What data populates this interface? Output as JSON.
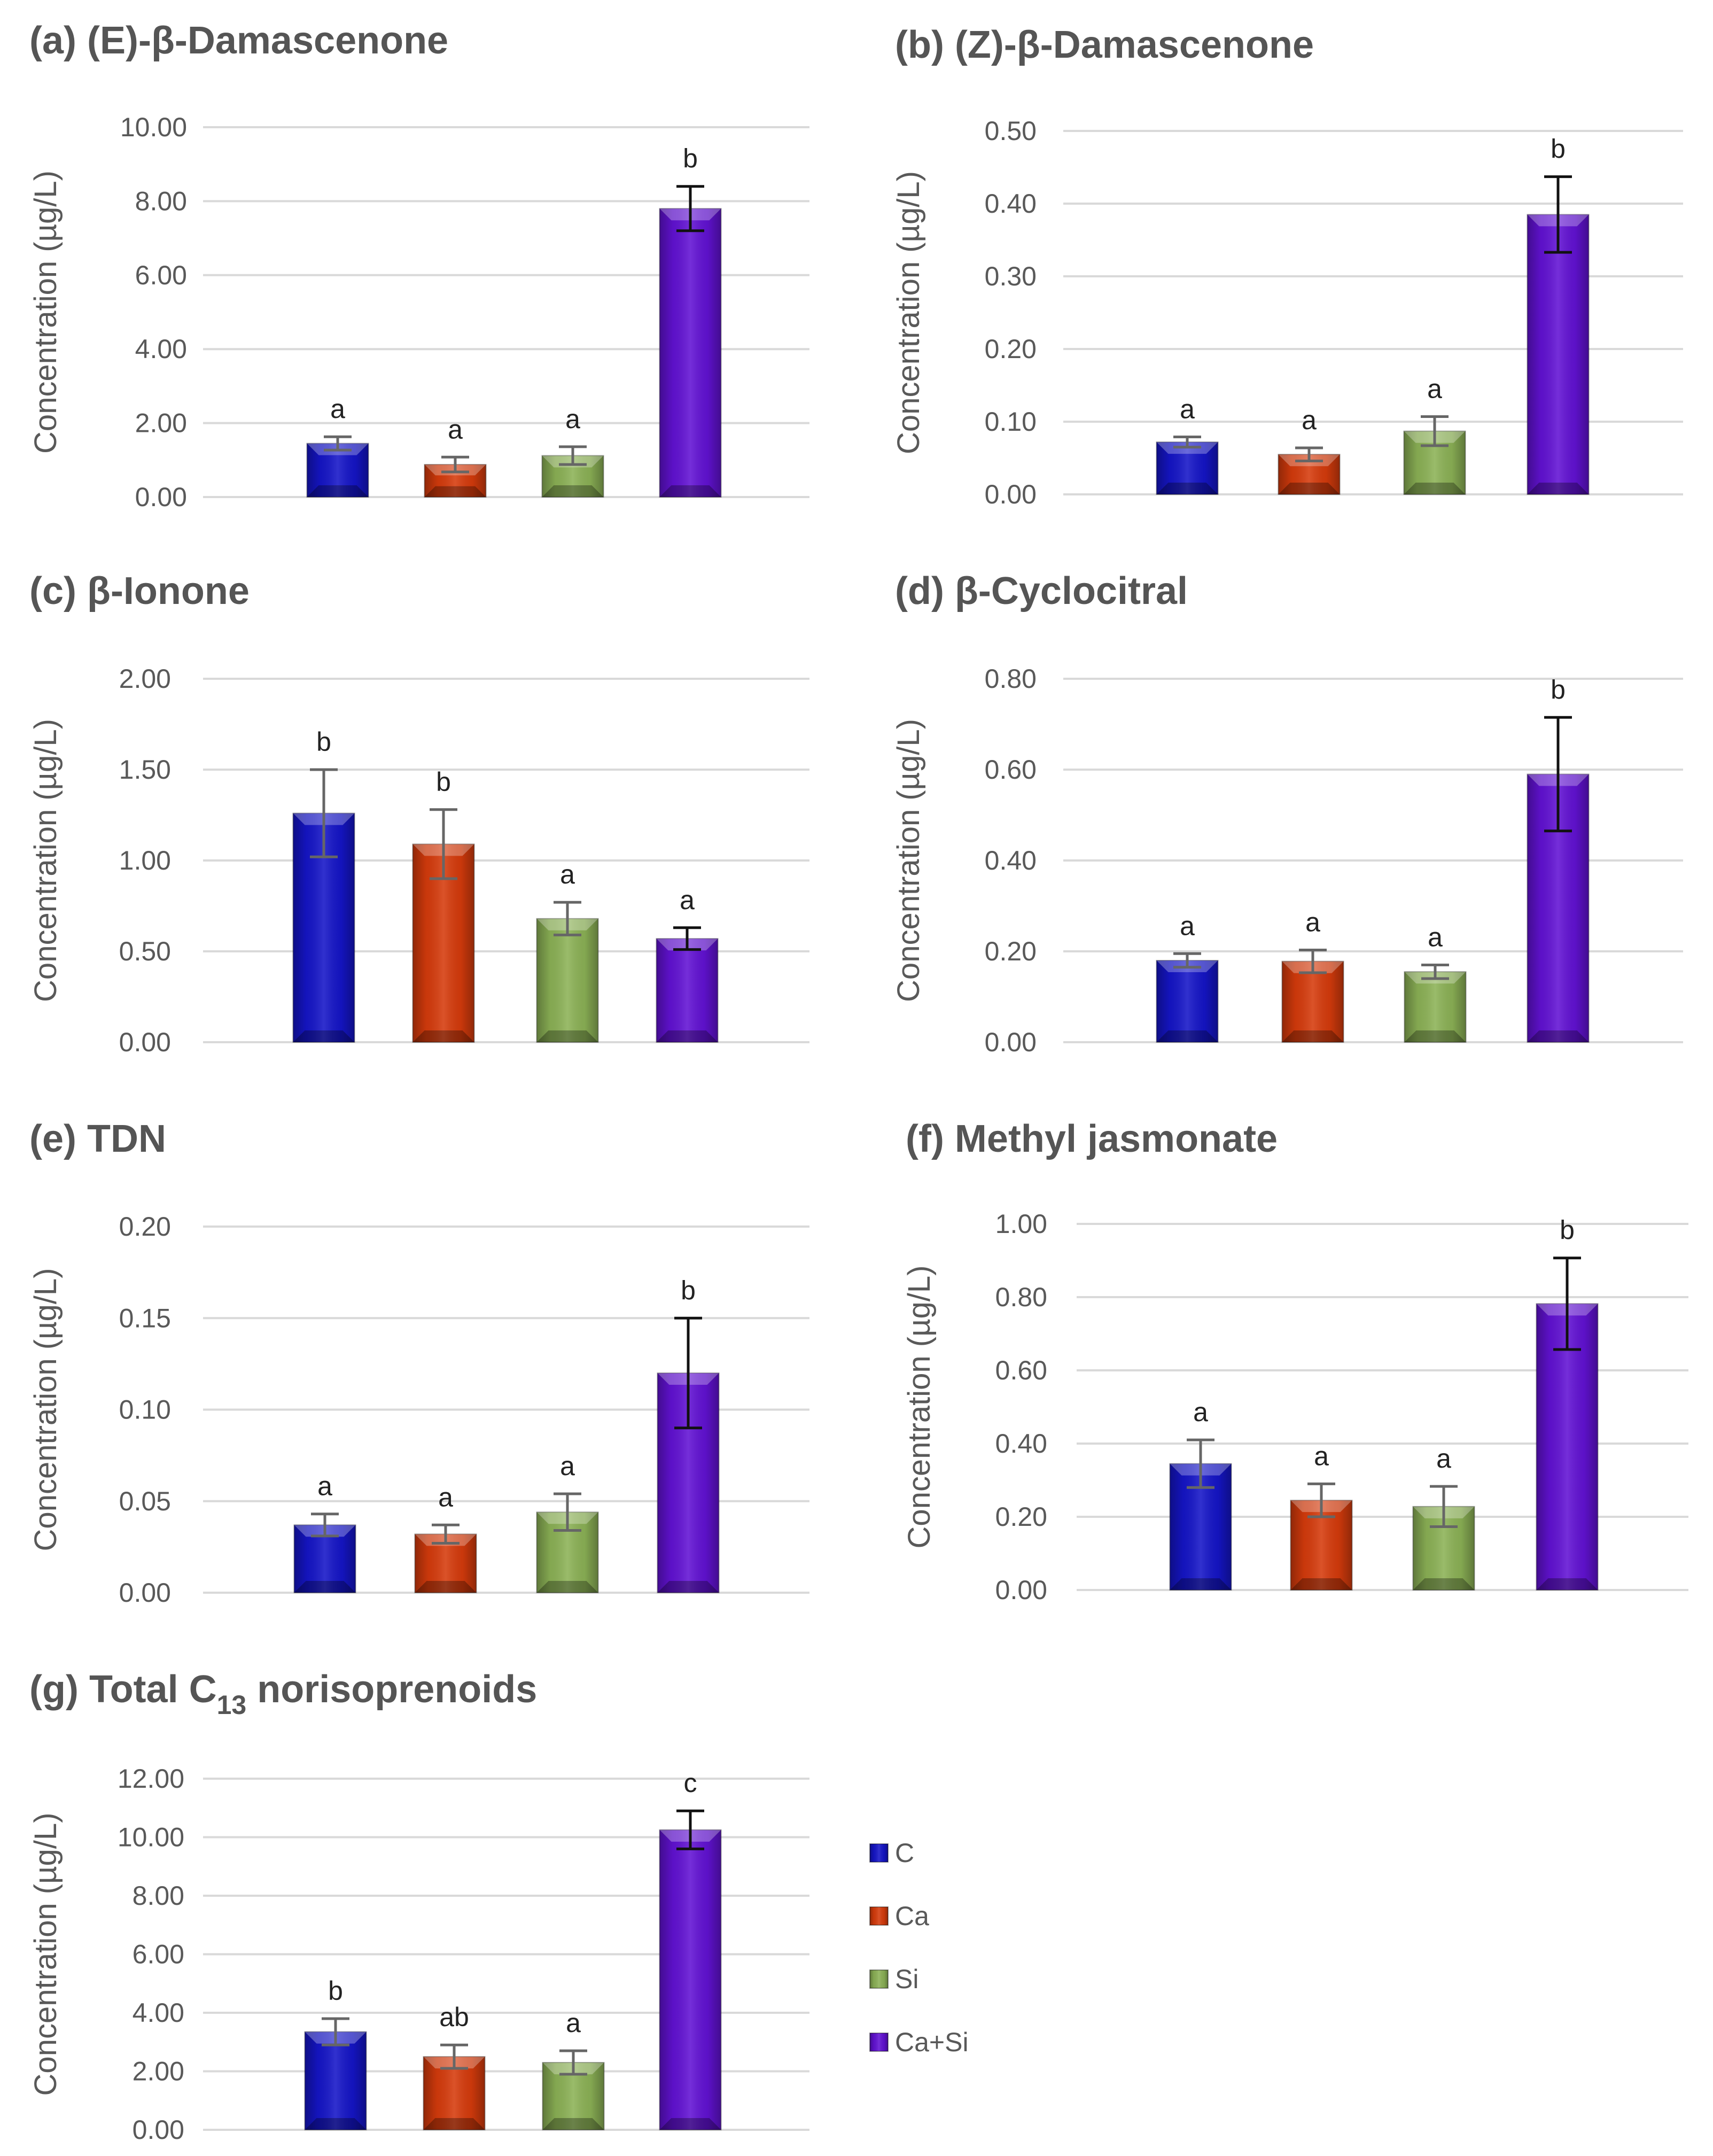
{
  "colors": {
    "C": "#1515c8",
    "Ca": "#d63b0c",
    "Si": "#8cb256",
    "Ca+Si": "#6212d4"
  },
  "legend": [
    "C",
    "Ca",
    "Si",
    "Ca+Si"
  ],
  "chart_data": [
    {
      "id": "a",
      "type": "bar",
      "title": "(a) (E)-β-Damascenone",
      "ylabel": "Concentration (µg/L)",
      "categories": [
        "C",
        "Ca",
        "Si",
        "Ca+Si"
      ],
      "values": [
        1.45,
        0.88,
        1.12,
        7.8
      ],
      "errors": [
        0.18,
        0.2,
        0.24,
        0.6
      ],
      "letters": [
        "a",
        "a",
        "a",
        "b"
      ],
      "ylim": [
        0,
        10
      ],
      "yticks": [
        "0.00",
        "2.00",
        "4.00",
        "6.00",
        "8.00",
        "10.00"
      ]
    },
    {
      "id": "b",
      "type": "bar",
      "title": "(b) (Z)-β-Damascenone",
      "ylabel": "Concentration (µg/L)",
      "categories": [
        "C",
        "Ca",
        "Si",
        "Ca+Si"
      ],
      "values": [
        0.072,
        0.055,
        0.087,
        0.385
      ],
      "errors": [
        0.007,
        0.009,
        0.02,
        0.052
      ],
      "letters": [
        "a",
        "a",
        "a",
        "b"
      ],
      "ylim": [
        0,
        0.5
      ],
      "yticks": [
        "0.00",
        "0.10",
        "0.20",
        "0.30",
        "0.40",
        "0.50"
      ]
    },
    {
      "id": "c",
      "type": "bar",
      "title": "(c) β-Ionone",
      "ylabel": "Concentration (µg/L)",
      "categories": [
        "C",
        "Ca",
        "Si",
        "Ca+Si"
      ],
      "values": [
        1.26,
        1.09,
        0.68,
        0.57
      ],
      "errors": [
        0.24,
        0.19,
        0.09,
        0.06
      ],
      "letters": [
        "b",
        "b",
        "a",
        "a"
      ],
      "ylim": [
        0,
        2
      ],
      "yticks": [
        "0.00",
        "0.50",
        "1.00",
        "1.50",
        "2.00"
      ]
    },
    {
      "id": "d",
      "type": "bar",
      "title": "(d) β-Cyclocitral",
      "ylabel": "Concentration (µg/L)",
      "categories": [
        "C",
        "Ca",
        "Si",
        "Ca+Si"
      ],
      "values": [
        0.18,
        0.178,
        0.155,
        0.59
      ],
      "errors": [
        0.015,
        0.025,
        0.015,
        0.125
      ],
      "letters": [
        "a",
        "a",
        "a",
        "b"
      ],
      "ylim": [
        0,
        0.8
      ],
      "yticks": [
        "0.00",
        "0.20",
        "0.40",
        "0.60",
        "0.80"
      ]
    },
    {
      "id": "e",
      "type": "bar",
      "title": "(e) TDN",
      "ylabel": "Concentration (µg/L)",
      "categories": [
        "C",
        "Ca",
        "Si",
        "Ca+Si"
      ],
      "values": [
        0.037,
        0.032,
        0.044,
        0.12
      ],
      "errors": [
        0.006,
        0.005,
        0.01,
        0.03
      ],
      "letters": [
        "a",
        "a",
        "a",
        "b"
      ],
      "ylim": [
        0,
        0.2
      ],
      "yticks": [
        "0.00",
        "0.05",
        "0.10",
        "0.15",
        "0.20"
      ]
    },
    {
      "id": "f",
      "type": "bar",
      "title": "(f) Methyl jasmonate",
      "ylabel": "Concentration (µg/L)",
      "categories": [
        "C",
        "Ca",
        "Si",
        "Ca+Si"
      ],
      "values": [
        0.345,
        0.245,
        0.228,
        0.782
      ],
      "errors": [
        0.065,
        0.045,
        0.055,
        0.125
      ],
      "letters": [
        "a",
        "a",
        "a",
        "b"
      ],
      "ylim": [
        0,
        1
      ],
      "yticks": [
        "0.00",
        "0.20",
        "0.40",
        "0.60",
        "0.80",
        "1.00"
      ]
    },
    {
      "id": "g",
      "type": "bar",
      "title": "(g) Total C13 norisoprenoids",
      "title_prefix": "(g) Total C",
      "title_sub": "13",
      "title_suffix": " norisoprenoids",
      "ylabel": "Concentration (µg/L)",
      "categories": [
        "C",
        "Ca",
        "Si",
        "Ca+Si"
      ],
      "values": [
        3.35,
        2.5,
        2.3,
        10.25
      ],
      "errors": [
        0.45,
        0.4,
        0.4,
        0.65
      ],
      "letters": [
        "b",
        "ab",
        "a",
        "c"
      ],
      "ylim": [
        0,
        12
      ],
      "yticks": [
        "0.00",
        "2.00",
        "4.00",
        "6.00",
        "8.00",
        "10.00",
        "12.00"
      ]
    }
  ]
}
